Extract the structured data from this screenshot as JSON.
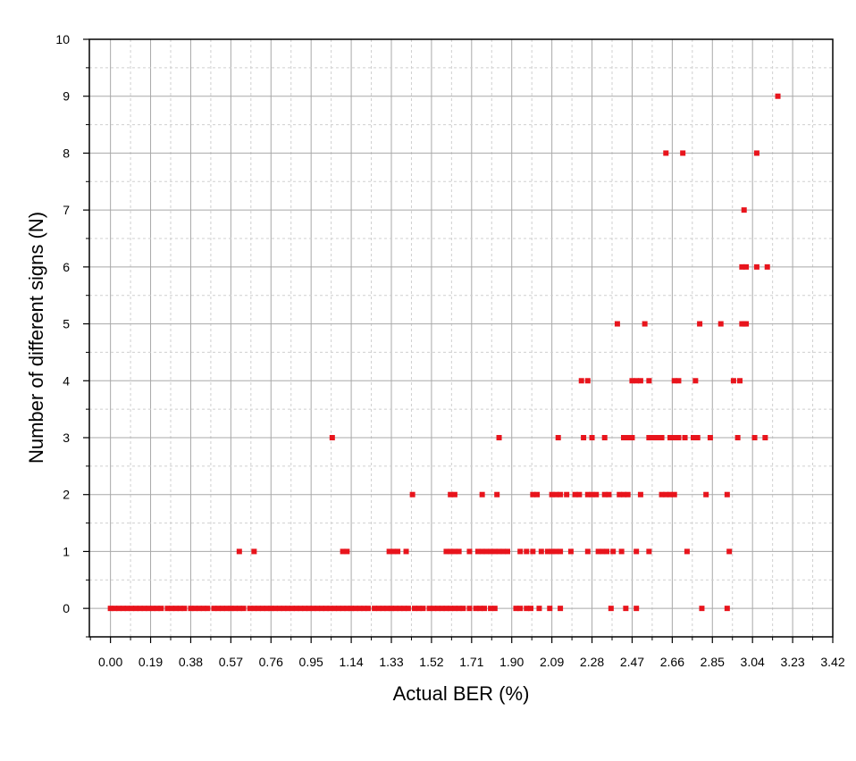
{
  "chart_data": {
    "type": "scatter",
    "title": "",
    "xlabel": "Actual BER (%)",
    "ylabel": "Number of different signs (N)",
    "xlim": [
      -0.1,
      3.42
    ],
    "ylim": [
      -0.5,
      10
    ],
    "x_ticks": [
      "0.00",
      "0.19",
      "0.38",
      "0.57",
      "0.76",
      "0.95",
      "1.14",
      "1.33",
      "1.52",
      "1.71",
      "1.90",
      "2.09",
      "2.28",
      "2.47",
      "2.66",
      "2.85",
      "3.04",
      "3.23",
      "3.42"
    ],
    "y_ticks": [
      "0",
      "1",
      "2",
      "3",
      "4",
      "5",
      "6",
      "7",
      "8",
      "9",
      "10"
    ],
    "grid": true,
    "marker_color": "#e8141c",
    "points": [
      [
        0.0,
        0
      ],
      [
        0.02,
        0
      ],
      [
        0.04,
        0
      ],
      [
        0.06,
        0
      ],
      [
        0.08,
        0
      ],
      [
        0.1,
        0
      ],
      [
        0.12,
        0
      ],
      [
        0.14,
        0
      ],
      [
        0.16,
        0
      ],
      [
        0.18,
        0
      ],
      [
        0.2,
        0
      ],
      [
        0.22,
        0
      ],
      [
        0.24,
        0
      ],
      [
        0.27,
        0
      ],
      [
        0.29,
        0
      ],
      [
        0.31,
        0
      ],
      [
        0.33,
        0
      ],
      [
        0.35,
        0
      ],
      [
        0.38,
        0
      ],
      [
        0.4,
        0
      ],
      [
        0.42,
        0
      ],
      [
        0.44,
        0
      ],
      [
        0.46,
        0
      ],
      [
        0.49,
        0
      ],
      [
        0.51,
        0
      ],
      [
        0.53,
        0
      ],
      [
        0.55,
        0
      ],
      [
        0.57,
        0
      ],
      [
        0.59,
        0
      ],
      [
        0.61,
        0
      ],
      [
        0.63,
        0
      ],
      [
        0.66,
        0
      ],
      [
        0.68,
        0
      ],
      [
        0.7,
        0
      ],
      [
        0.72,
        0
      ],
      [
        0.74,
        0
      ],
      [
        0.76,
        0
      ],
      [
        0.78,
        0
      ],
      [
        0.8,
        0
      ],
      [
        0.82,
        0
      ],
      [
        0.84,
        0
      ],
      [
        0.86,
        0
      ],
      [
        0.88,
        0
      ],
      [
        0.9,
        0
      ],
      [
        0.92,
        0
      ],
      [
        0.94,
        0
      ],
      [
        0.96,
        0
      ],
      [
        0.98,
        0
      ],
      [
        1.0,
        0
      ],
      [
        1.02,
        0
      ],
      [
        1.04,
        0
      ],
      [
        1.06,
        0
      ],
      [
        1.08,
        0
      ],
      [
        1.1,
        0
      ],
      [
        1.12,
        0
      ],
      [
        1.14,
        0
      ],
      [
        1.16,
        0
      ],
      [
        1.18,
        0
      ],
      [
        1.2,
        0
      ],
      [
        1.22,
        0
      ],
      [
        1.25,
        0
      ],
      [
        1.27,
        0
      ],
      [
        1.29,
        0
      ],
      [
        1.31,
        0
      ],
      [
        1.33,
        0
      ],
      [
        1.35,
        0
      ],
      [
        1.37,
        0
      ],
      [
        1.39,
        0
      ],
      [
        1.41,
        0
      ],
      [
        1.44,
        0
      ],
      [
        1.46,
        0
      ],
      [
        1.48,
        0
      ],
      [
        1.51,
        0
      ],
      [
        1.53,
        0
      ],
      [
        1.55,
        0
      ],
      [
        1.57,
        0
      ],
      [
        1.59,
        0
      ],
      [
        1.61,
        0
      ],
      [
        1.63,
        0
      ],
      [
        1.65,
        0
      ],
      [
        1.67,
        0
      ],
      [
        1.7,
        0
      ],
      [
        1.73,
        0
      ],
      [
        1.75,
        0
      ],
      [
        1.77,
        0
      ],
      [
        1.8,
        0
      ],
      [
        1.82,
        0
      ],
      [
        1.92,
        0
      ],
      [
        1.94,
        0
      ],
      [
        1.97,
        0
      ],
      [
        1.99,
        0
      ],
      [
        2.03,
        0
      ],
      [
        2.08,
        0
      ],
      [
        2.13,
        0
      ],
      [
        2.37,
        0
      ],
      [
        2.44,
        0
      ],
      [
        2.49,
        0
      ],
      [
        2.8,
        0
      ],
      [
        2.92,
        0
      ],
      [
        0.61,
        1
      ],
      [
        0.68,
        1
      ],
      [
        1.1,
        1
      ],
      [
        1.12,
        1
      ],
      [
        1.32,
        1
      ],
      [
        1.34,
        1
      ],
      [
        1.36,
        1
      ],
      [
        1.4,
        1
      ],
      [
        1.59,
        1
      ],
      [
        1.61,
        1
      ],
      [
        1.63,
        1
      ],
      [
        1.65,
        1
      ],
      [
        1.7,
        1
      ],
      [
        1.74,
        1
      ],
      [
        1.76,
        1
      ],
      [
        1.78,
        1
      ],
      [
        1.8,
        1
      ],
      [
        1.82,
        1
      ],
      [
        1.84,
        1
      ],
      [
        1.86,
        1
      ],
      [
        1.88,
        1
      ],
      [
        1.94,
        1
      ],
      [
        1.97,
        1
      ],
      [
        2.0,
        1
      ],
      [
        2.04,
        1
      ],
      [
        2.07,
        1
      ],
      [
        2.09,
        1
      ],
      [
        2.11,
        1
      ],
      [
        2.13,
        1
      ],
      [
        2.18,
        1
      ],
      [
        2.26,
        1
      ],
      [
        2.31,
        1
      ],
      [
        2.33,
        1
      ],
      [
        2.35,
        1
      ],
      [
        2.38,
        1
      ],
      [
        2.42,
        1
      ],
      [
        2.49,
        1
      ],
      [
        2.55,
        1
      ],
      [
        2.73,
        1
      ],
      [
        2.93,
        1
      ],
      [
        1.43,
        2
      ],
      [
        1.61,
        2
      ],
      [
        1.63,
        2
      ],
      [
        1.76,
        2
      ],
      [
        1.83,
        2
      ],
      [
        2.0,
        2
      ],
      [
        2.02,
        2
      ],
      [
        2.09,
        2
      ],
      [
        2.11,
        2
      ],
      [
        2.13,
        2
      ],
      [
        2.16,
        2
      ],
      [
        2.2,
        2
      ],
      [
        2.22,
        2
      ],
      [
        2.26,
        2
      ],
      [
        2.28,
        2
      ],
      [
        2.3,
        2
      ],
      [
        2.34,
        2
      ],
      [
        2.36,
        2
      ],
      [
        2.41,
        2
      ],
      [
        2.43,
        2
      ],
      [
        2.45,
        2
      ],
      [
        2.51,
        2
      ],
      [
        2.61,
        2
      ],
      [
        2.63,
        2
      ],
      [
        2.65,
        2
      ],
      [
        2.67,
        2
      ],
      [
        2.82,
        2
      ],
      [
        2.92,
        2
      ],
      [
        1.05,
        3
      ],
      [
        1.84,
        3
      ],
      [
        2.12,
        3
      ],
      [
        2.24,
        3
      ],
      [
        2.28,
        3
      ],
      [
        2.34,
        3
      ],
      [
        2.43,
        3
      ],
      [
        2.45,
        3
      ],
      [
        2.47,
        3
      ],
      [
        2.55,
        3
      ],
      [
        2.57,
        3
      ],
      [
        2.59,
        3
      ],
      [
        2.61,
        3
      ],
      [
        2.65,
        3
      ],
      [
        2.67,
        3
      ],
      [
        2.69,
        3
      ],
      [
        2.72,
        3
      ],
      [
        2.76,
        3
      ],
      [
        2.78,
        3
      ],
      [
        2.84,
        3
      ],
      [
        2.97,
        3
      ],
      [
        3.05,
        3
      ],
      [
        3.1,
        3
      ],
      [
        2.23,
        4
      ],
      [
        2.26,
        4
      ],
      [
        2.47,
        4
      ],
      [
        2.49,
        4
      ],
      [
        2.51,
        4
      ],
      [
        2.55,
        4
      ],
      [
        2.67,
        4
      ],
      [
        2.69,
        4
      ],
      [
        2.77,
        4
      ],
      [
        2.95,
        4
      ],
      [
        2.98,
        4
      ],
      [
        2.4,
        5
      ],
      [
        2.53,
        5
      ],
      [
        2.79,
        5
      ],
      [
        2.89,
        5
      ],
      [
        2.99,
        5
      ],
      [
        3.0,
        5
      ],
      [
        3.01,
        5
      ],
      [
        2.99,
        6
      ],
      [
        3.01,
        6
      ],
      [
        3.06,
        6
      ],
      [
        3.11,
        6
      ],
      [
        3.0,
        7
      ],
      [
        2.63,
        8
      ],
      [
        2.71,
        8
      ],
      [
        3.06,
        8
      ],
      [
        3.16,
        9
      ]
    ]
  }
}
